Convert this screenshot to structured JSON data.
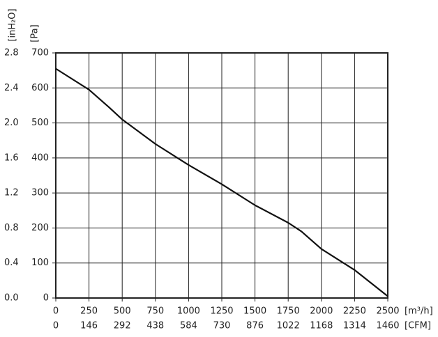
{
  "chart_data": {
    "type": "line",
    "x_label": "[m³/h]",
    "x2_label": "[CFM]",
    "y_label": "[Pa]",
    "y2_label": "[inH₂O]",
    "x": [
      0,
      250,
      400,
      500,
      750,
      1000,
      1250,
      1500,
      1750,
      1850,
      2000,
      2250,
      2500
    ],
    "values": [
      655,
      595,
      545,
      510,
      440,
      380,
      325,
      265,
      215,
      190,
      140,
      80,
      5
    ],
    "color": "#111111",
    "xlim": [
      0,
      2500
    ],
    "xticks": [
      0,
      250,
      500,
      750,
      1000,
      1250,
      1500,
      1750,
      2000,
      2250,
      2500
    ],
    "x2lim": [
      0,
      1460
    ],
    "x2ticks": [
      0,
      146,
      292,
      438,
      584,
      730,
      876,
      1022,
      1168,
      1314,
      1460
    ],
    "ylim": [
      0,
      700
    ],
    "yticks": [
      0,
      100,
      200,
      300,
      400,
      500,
      600,
      700
    ],
    "y2lim": [
      0,
      2.8
    ],
    "y2ticks": [
      {
        "value": 0,
        "label": "0.0"
      },
      0.4,
      0.8,
      1.2,
      1.6,
      {
        "value": 2,
        "label": "2.0"
      },
      2.4,
      2.8
    ],
    "grid": true
  }
}
